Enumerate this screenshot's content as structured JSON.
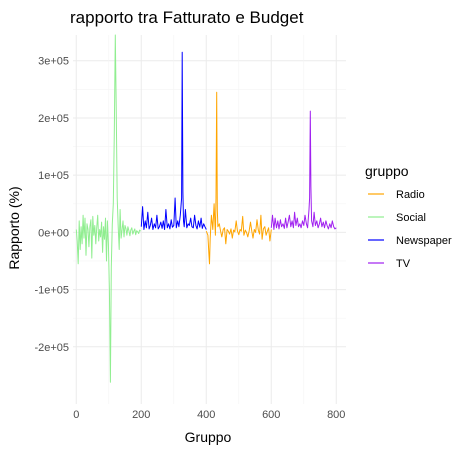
{
  "chart_data": {
    "type": "line",
    "title": "rapporto tra Fatturato e Budget",
    "xlabel": "Gruppo",
    "ylabel": "Rapporto (%)",
    "xlim": [
      -10,
      830
    ],
    "ylim": [
      -300000,
      345000
    ],
    "x_ticks": [
      0,
      200,
      400,
      600,
      800
    ],
    "x_tick_labels": [
      "0",
      "200",
      "400",
      "600",
      "800"
    ],
    "y_ticks": [
      -200000,
      -100000,
      0,
      100000,
      200000,
      300000
    ],
    "y_tick_labels": [
      "-2e+05",
      "-1e+05",
      "0e+00",
      "1e+05",
      "2e+05",
      "3e+05"
    ],
    "grid": true,
    "legend": {
      "title": "gruppo",
      "position": "right"
    },
    "series": [
      {
        "name": "Radio",
        "color": "#FFA500",
        "x": [
          400,
          405,
          408,
          410,
          412,
          416,
          420,
          424,
          428,
          430,
          432,
          434,
          436,
          440,
          444,
          448,
          452,
          456,
          460,
          464,
          468,
          472,
          476,
          480,
          484,
          488,
          492,
          496,
          500,
          504,
          508,
          512,
          516,
          520,
          524,
          528,
          532,
          536,
          540,
          544,
          548,
          552,
          556,
          560,
          564,
          568,
          572,
          576,
          580,
          584,
          588,
          592,
          596,
          600
        ],
        "y": [
          2000,
          -5000,
          -35000,
          -55000,
          -10000,
          30000,
          5000,
          50000,
          -5000,
          60000,
          245000,
          40000,
          10000,
          15000,
          3000,
          -8000,
          5000,
          8000,
          -20000,
          5000,
          2000,
          -3000,
          6000,
          -10000,
          4000,
          1000,
          20000,
          3000,
          -4000,
          5000,
          2000,
          28000,
          -5000,
          4000,
          0,
          -8000,
          3000,
          18000,
          2000,
          -10000,
          5000,
          0,
          22000,
          4000,
          -3000,
          30000,
          -12000,
          6000,
          10000,
          -5000,
          2000,
          8000,
          -15000,
          5000
        ]
      },
      {
        "name": "Social",
        "color": "#90EE90",
        "x": [
          0,
          3,
          6,
          9,
          12,
          15,
          18,
          21,
          24,
          27,
          30,
          33,
          36,
          39,
          42,
          45,
          48,
          51,
          54,
          57,
          60,
          63,
          66,
          69,
          72,
          75,
          78,
          81,
          84,
          87,
          90,
          93,
          96,
          99,
          102,
          105,
          108,
          111,
          114,
          117,
          120,
          123,
          126,
          129,
          132,
          135,
          138,
          141,
          144,
          147,
          150,
          153,
          156,
          159,
          162,
          165,
          168,
          171,
          174,
          177,
          180,
          183,
          186,
          189,
          192,
          195,
          198
        ],
        "y": [
          5000,
          -15000,
          -55000,
          20000,
          -30000,
          10000,
          -20000,
          30000,
          -10000,
          25000,
          -40000,
          15000,
          5000,
          -25000,
          10000,
          22000,
          -45000,
          28000,
          -5000,
          12000,
          -20000,
          8000,
          30000,
          -15000,
          5000,
          -8000,
          18000,
          -35000,
          10000,
          -12000,
          25000,
          -50000,
          20000,
          -20000,
          -100000,
          -262000,
          -60000,
          15000,
          50000,
          173000,
          345000,
          220000,
          60000,
          10000,
          -30000,
          40000,
          -10000,
          5000,
          20000,
          -8000,
          12000,
          6000,
          -5000,
          10000,
          3000,
          -6000,
          4000,
          8000,
          -3000,
          2000,
          6000,
          -4000,
          3000,
          1000,
          -2000,
          4000,
          2000
        ]
      },
      {
        "name": "Newspaper",
        "color": "#0000FF",
        "x": [
          200,
          204,
          208,
          212,
          216,
          220,
          224,
          228,
          232,
          236,
          240,
          244,
          248,
          252,
          256,
          260,
          264,
          268,
          272,
          276,
          280,
          284,
          288,
          292,
          296,
          300,
          304,
          308,
          312,
          316,
          320,
          324,
          326,
          328,
          330,
          332,
          336,
          340,
          344,
          348,
          352,
          356,
          360,
          364,
          368,
          372,
          376,
          380,
          384,
          388,
          392,
          396,
          400
        ],
        "y": [
          10000,
          45000,
          5000,
          20000,
          8000,
          35000,
          6000,
          12000,
          25000,
          5000,
          15000,
          8000,
          30000,
          6000,
          10000,
          18000,
          7000,
          20000,
          5000,
          40000,
          8000,
          15000,
          6000,
          22000,
          9000,
          12000,
          60000,
          8000,
          20000,
          10000,
          30000,
          60000,
          315000,
          70000,
          20000,
          10000,
          40000,
          8000,
          15000,
          12000,
          25000,
          10000,
          8000,
          30000,
          12000,
          6000,
          20000,
          9000,
          25000,
          7000,
          15000,
          10000,
          5000
        ]
      },
      {
        "name": "TV",
        "color": "#A020F0",
        "x": [
          600,
          604,
          608,
          612,
          616,
          620,
          624,
          628,
          632,
          636,
          640,
          644,
          648,
          652,
          656,
          660,
          664,
          668,
          672,
          676,
          680,
          684,
          688,
          692,
          696,
          700,
          704,
          708,
          712,
          716,
          718,
          720,
          722,
          724,
          728,
          732,
          736,
          740,
          744,
          748,
          752,
          756,
          760,
          764,
          768,
          772,
          776,
          780,
          784,
          788,
          792,
          796,
          800
        ],
        "y": [
          8000,
          30000,
          5000,
          25000,
          8000,
          20000,
          6000,
          22000,
          10000,
          15000,
          7000,
          25000,
          8000,
          18000,
          30000,
          10000,
          20000,
          8000,
          35000,
          12000,
          25000,
          10000,
          15000,
          8000,
          20000,
          12000,
          30000,
          15000,
          8000,
          40000,
          60000,
          212000,
          80000,
          20000,
          10000,
          35000,
          12000,
          20000,
          8000,
          15000,
          25000,
          10000,
          18000,
          8000,
          20000,
          12000,
          6000,
          15000,
          8000,
          20000,
          10000,
          6000,
          8000
        ]
      }
    ]
  }
}
